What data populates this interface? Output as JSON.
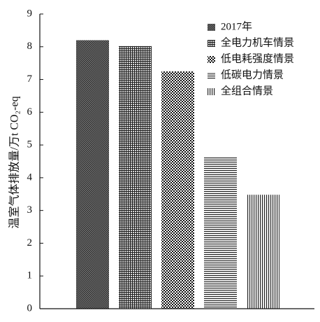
{
  "chart_data": {
    "type": "bar",
    "title": "",
    "xlabel": "",
    "ylabel": "温室气体排放量/万t CO₂-eq",
    "ylim": [
      0,
      9
    ],
    "yticks": [
      0,
      1,
      2,
      3,
      4,
      5,
      6,
      7,
      8,
      9
    ],
    "grid": false,
    "legend_position": "top-right",
    "series": [
      {
        "name": "2017年",
        "value": 8.2,
        "pattern": "dense-crosshatch"
      },
      {
        "name": "全电力机车情景",
        "value": 8.02,
        "pattern": "grid"
      },
      {
        "name": "低电耗强度情景",
        "value": 7.25,
        "pattern": "checker"
      },
      {
        "name": "低碳电力情景",
        "value": 4.62,
        "pattern": "horizontal-lines"
      },
      {
        "name": "全组合情景",
        "value": 3.48,
        "pattern": "vertical-lines"
      }
    ]
  }
}
